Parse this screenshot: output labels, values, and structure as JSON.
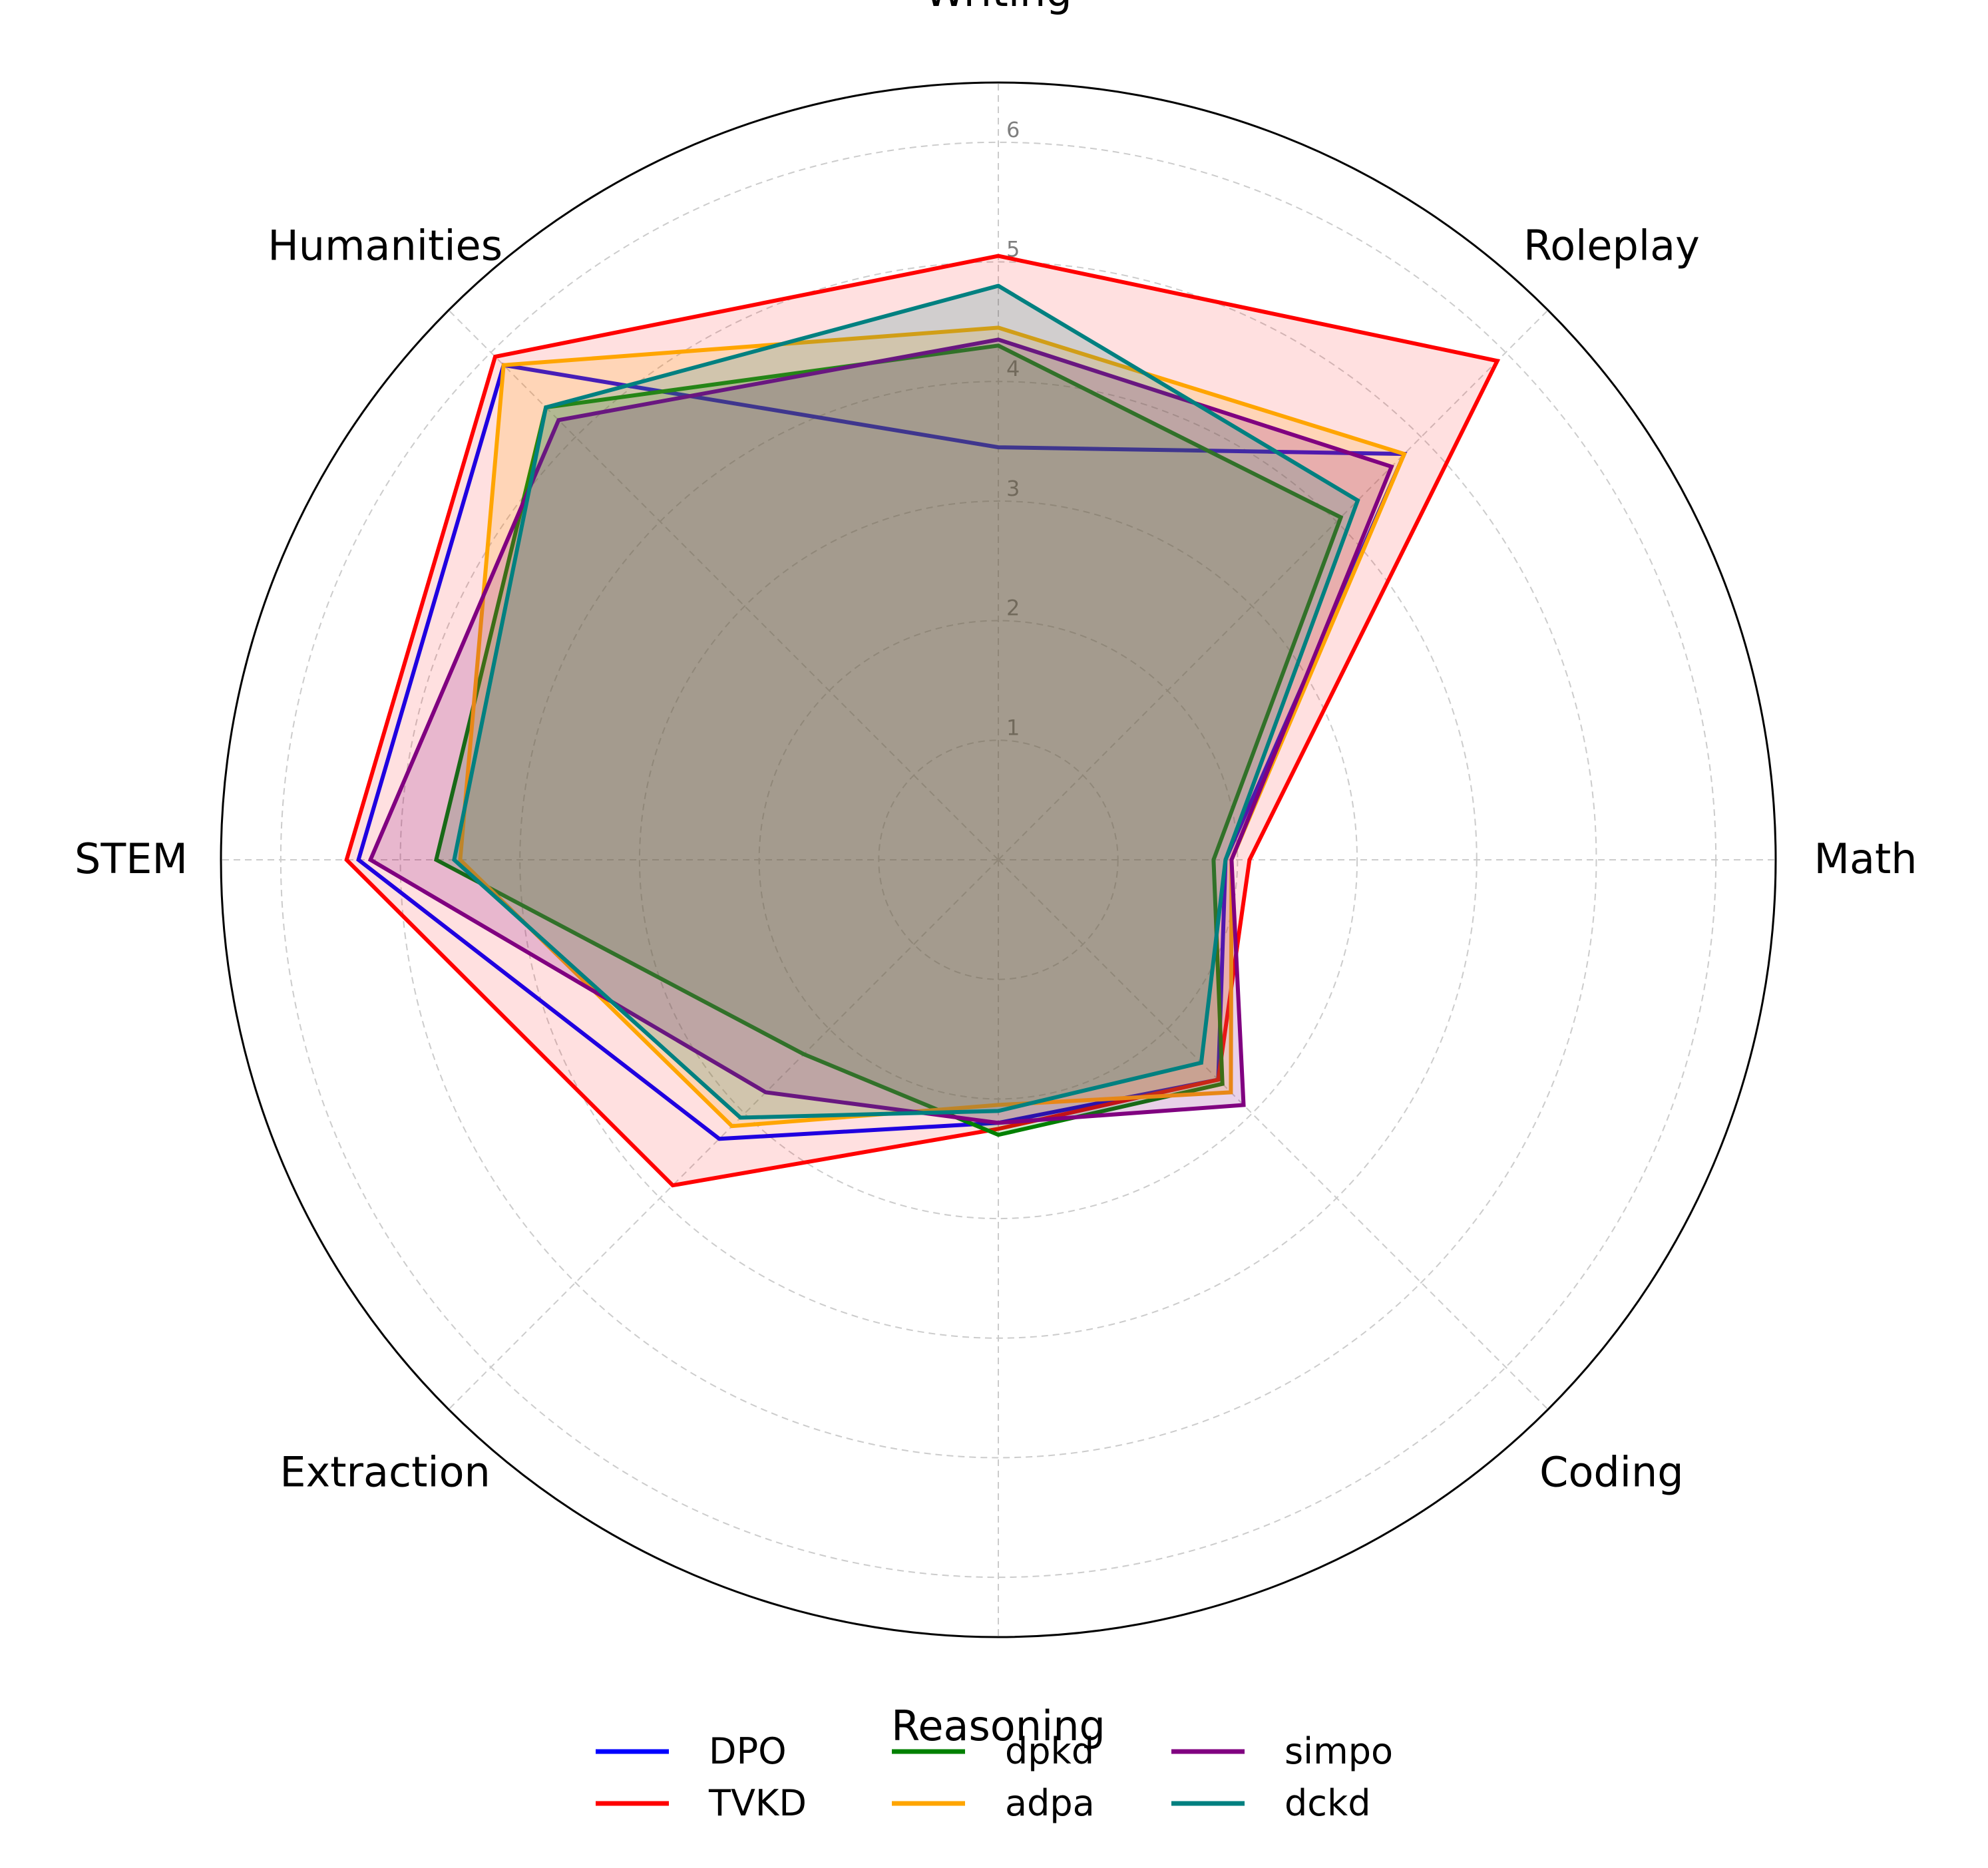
{
  "chart_data": {
    "type": "radar",
    "title": "",
    "categories": [
      "Writing",
      "Roleplay",
      "Math",
      "Coding",
      "Reasoning",
      "Extraction",
      "STEM",
      "Humanities"
    ],
    "rlim": [
      0,
      6.5
    ],
    "rticks": [
      1,
      2,
      3,
      4,
      5,
      6
    ],
    "rtick_labels": [
      "1",
      "2",
      "3",
      "4",
      "5",
      "6"
    ],
    "grid": true,
    "legend": {
      "position": "bottom-center",
      "columns": 3
    },
    "series": [
      {
        "name": "DPO",
        "color": "#0000ff",
        "fill_opacity": 0.0,
        "values": [
          3.45,
          4.8,
          1.9,
          2.6,
          2.2,
          3.3,
          5.35,
          5.85
        ]
      },
      {
        "name": "TVKD",
        "color": "#ff0000",
        "fill_opacity": 0.12,
        "values": [
          5.05,
          5.9,
          2.1,
          2.6,
          2.25,
          3.85,
          5.45,
          5.95
        ]
      },
      {
        "name": "dpkd",
        "color": "#008000",
        "fill_opacity": 0.18,
        "values": [
          4.3,
          4.05,
          1.8,
          2.65,
          2.3,
          2.3,
          4.7,
          5.35
        ]
      },
      {
        "name": "adpa",
        "color": "#ffa500",
        "fill_opacity": 0.18,
        "values": [
          4.45,
          4.8,
          1.95,
          2.75,
          2.05,
          3.15,
          4.5,
          5.85
        ]
      },
      {
        "name": "simpo",
        "color": "#800080",
        "fill_opacity": 0.18,
        "values": [
          4.35,
          4.65,
          1.95,
          2.9,
          2.2,
          2.75,
          5.25,
          5.2
        ]
      },
      {
        "name": "dckd",
        "color": "#008080",
        "fill_opacity": 0.18,
        "values": [
          4.8,
          4.25,
          1.9,
          2.4,
          2.1,
          3.05,
          4.55,
          5.35
        ]
      }
    ]
  }
}
